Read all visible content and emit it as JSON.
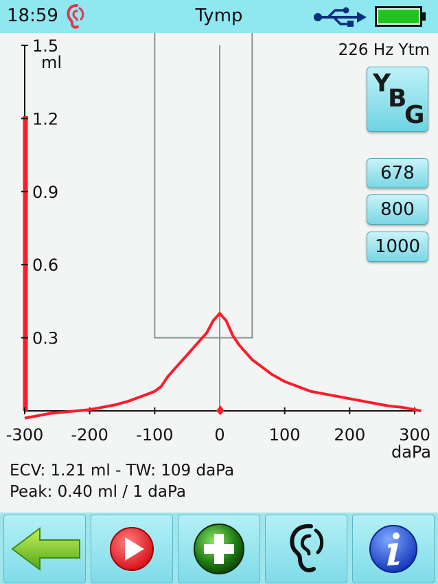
{
  "status_bar": {
    "time": "18:59",
    "title": "Tymp",
    "icons": [
      "ear-icon",
      "usb-icon",
      "battery-icon"
    ]
  },
  "probe_frequency": "226 Hz Ytm",
  "buttons": {
    "ybg": {
      "y": "Y",
      "b": "B",
      "g": "G"
    },
    "freq_678": "678",
    "freq_800": "800",
    "freq_1000": "1000"
  },
  "readout": {
    "line1": "ECV: 1.21 ml - TW: 109 daPa",
    "line2": "Peak: 0.40 ml / 1 daPa"
  },
  "toolbar": {
    "icons": [
      "back-arrow-icon",
      "play-icon",
      "add-icon",
      "ear-icon",
      "info-icon"
    ]
  },
  "colors": {
    "curve": "#ff1b2a",
    "status_bar": "#8fe7f0",
    "button": "#7fdbe8",
    "background": "#f2f5f3"
  },
  "chart_data": {
    "type": "line",
    "xlabel": "daPa",
    "ylabel": "ml",
    "xlim": [
      -300,
      300
    ],
    "ylim": [
      0,
      1.5
    ],
    "x_ticks": [
      "-300",
      "-200",
      "-100",
      "0",
      "100",
      "200",
      "300"
    ],
    "y_ticks": [
      "0.3",
      "0.6",
      "0.9",
      "1.2",
      "1.5"
    ],
    "ecv_bar_value": 1.21,
    "tolerance_box": {
      "x": [
        -100,
        50
      ],
      "y": [
        0.3,
        1.5
      ]
    },
    "peak": {
      "x": 1,
      "y": 0.4
    },
    "series": [
      {
        "x": [
          -300,
          -280,
          -260,
          -240,
          -220,
          -200,
          -180,
          -160,
          -140,
          -120,
          -110,
          -100,
          -90,
          -80,
          -70,
          -60,
          -50,
          -40,
          -30,
          -20,
          -10,
          0,
          10,
          20,
          30,
          40,
          50,
          60,
          70,
          80,
          100,
          120,
          140,
          160,
          180,
          200,
          220,
          240,
          260,
          280,
          300,
          310
        ],
        "y": [
          -0.03,
          -0.02,
          -0.01,
          -0.005,
          0.0,
          0.005,
          0.015,
          0.025,
          0.04,
          0.06,
          0.07,
          0.08,
          0.1,
          0.14,
          0.17,
          0.2,
          0.23,
          0.26,
          0.29,
          0.32,
          0.37,
          0.4,
          0.37,
          0.31,
          0.27,
          0.24,
          0.21,
          0.19,
          0.17,
          0.15,
          0.12,
          0.1,
          0.08,
          0.07,
          0.06,
          0.05,
          0.04,
          0.03,
          0.02,
          0.015,
          0.005,
          0.0
        ]
      }
    ]
  }
}
